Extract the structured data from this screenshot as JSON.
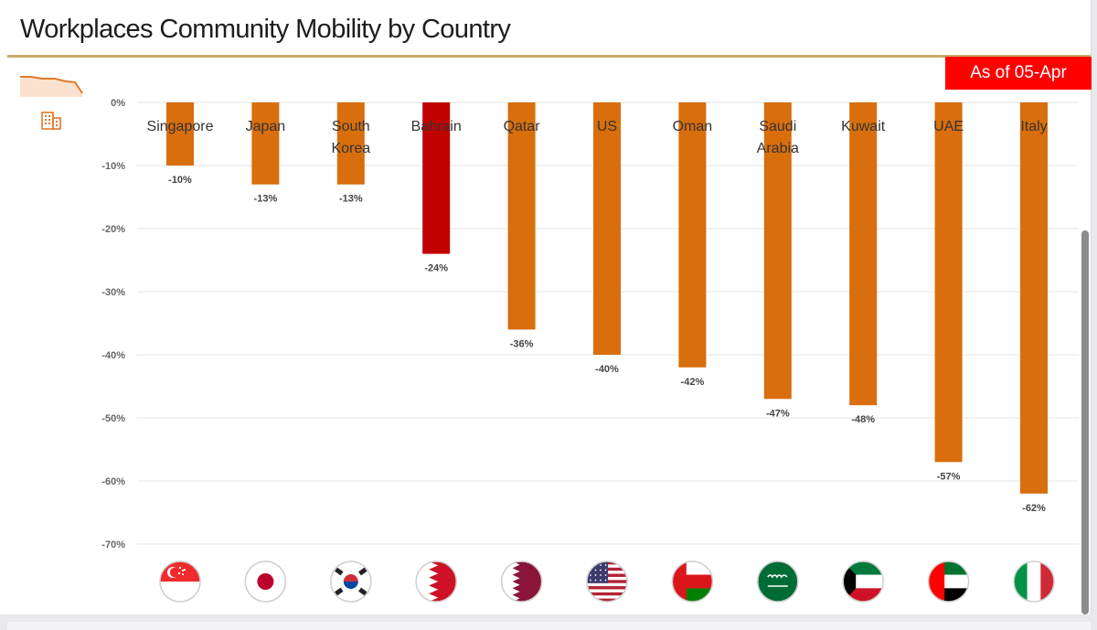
{
  "header": {
    "title": "Workplaces Community Mobility by Country",
    "date_badge": "As of 05-Apr"
  },
  "icons": {
    "trend": "mini-line-chart-icon",
    "category": "office-building-icon"
  },
  "colors": {
    "bar": "#d96e0c",
    "highlight_bar": "#c20000",
    "badge": "#ff0000",
    "title_rule": "#c9a86a"
  },
  "chart_data": {
    "type": "bar",
    "title": "Workplaces Community Mobility by Country",
    "categories": [
      [
        "Singapore"
      ],
      [
        "Japan"
      ],
      [
        "South",
        "Korea"
      ],
      [
        "Bahrain"
      ],
      [
        "Qatar"
      ],
      [
        "US"
      ],
      [
        "Oman"
      ],
      [
        "Saudi",
        "Arabia"
      ],
      [
        "Kuwait"
      ],
      [
        "UAE"
      ],
      [
        "Italy"
      ]
    ],
    "values": [
      -10,
      -13,
      -13,
      -24,
      -36,
      -40,
      -42,
      -47,
      -48,
      -57,
      -62
    ],
    "value_labels": [
      "-10%",
      "-13%",
      "-13%",
      "-24%",
      "-36%",
      "-40%",
      "-42%",
      "-47%",
      "-48%",
      "-57%",
      "-62%"
    ],
    "highlight": "Bahrain",
    "ylim": [
      -70,
      0
    ],
    "yticks": [
      0,
      -10,
      -20,
      -30,
      -40,
      -50,
      -60,
      -70
    ],
    "ytick_labels": [
      "0%",
      "-10%",
      "-20%",
      "-30%",
      "-40%",
      "-50%",
      "-60%",
      "-70%"
    ],
    "grid": true,
    "flags": [
      "singapore-flag-icon",
      "japan-flag-icon",
      "south-korea-flag-icon",
      "bahrain-flag-icon",
      "qatar-flag-icon",
      "us-flag-icon",
      "oman-flag-icon",
      "saudi-arabia-flag-icon",
      "kuwait-flag-icon",
      "uae-flag-icon",
      "italy-flag-icon"
    ]
  }
}
